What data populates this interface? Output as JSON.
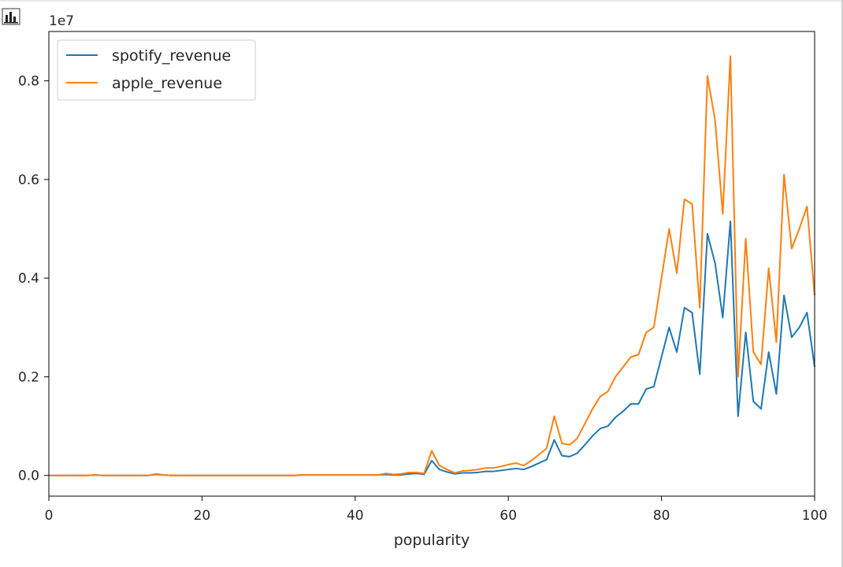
{
  "toolbar": {
    "icon": "bar-chart-icon"
  },
  "chart_data": {
    "type": "line",
    "title": "",
    "xlabel": "popularity",
    "ylabel": "",
    "y_offset_label": "1e7",
    "y_scale": 10000000,
    "xlim": [
      0,
      100
    ],
    "ylim": [
      -0.042,
      0.9
    ],
    "xticks": [
      0,
      20,
      40,
      60,
      80,
      100
    ],
    "yticks": [
      0.0,
      0.2,
      0.4,
      0.6,
      0.8
    ],
    "grid": false,
    "legend": "upper-left",
    "x": [
      0,
      1,
      2,
      3,
      4,
      5,
      6,
      7,
      8,
      9,
      10,
      11,
      12,
      13,
      14,
      15,
      16,
      17,
      18,
      19,
      20,
      21,
      22,
      23,
      24,
      25,
      26,
      27,
      28,
      29,
      30,
      31,
      32,
      33,
      34,
      35,
      36,
      37,
      38,
      39,
      40,
      41,
      42,
      43,
      44,
      45,
      46,
      47,
      48,
      49,
      50,
      51,
      52,
      53,
      54,
      55,
      56,
      57,
      58,
      59,
      60,
      61,
      62,
      63,
      64,
      65,
      66,
      67,
      68,
      69,
      70,
      71,
      72,
      73,
      74,
      75,
      76,
      77,
      78,
      79,
      80,
      81,
      82,
      83,
      84,
      85,
      86,
      87,
      88,
      89,
      90,
      91,
      92,
      93,
      94,
      95,
      96,
      97,
      98,
      99,
      100
    ],
    "series": [
      {
        "name": "spotify_revenue",
        "color": "#1f77b4",
        "values": [
          0.0,
          0.0,
          0.0,
          0.0,
          0.0,
          0.0,
          0.001,
          0.0,
          0.0,
          0.0,
          0.0,
          0.0,
          0.0,
          0.0,
          0.002,
          0.001,
          0.0,
          0.0,
          0.0,
          0.0,
          0.0,
          0.0,
          0.0,
          0.0,
          0.0,
          0.0,
          0.0,
          0.0,
          0.0,
          0.0,
          0.0,
          0.0,
          0.0,
          0.001,
          0.001,
          0.001,
          0.001,
          0.001,
          0.001,
          0.001,
          0.001,
          0.001,
          0.001,
          0.001,
          0.002,
          0.001,
          0.001,
          0.003,
          0.004,
          0.002,
          0.03,
          0.012,
          0.007,
          0.003,
          0.005,
          0.005,
          0.006,
          0.008,
          0.008,
          0.01,
          0.012,
          0.014,
          0.012,
          0.018,
          0.025,
          0.032,
          0.072,
          0.04,
          0.038,
          0.045,
          0.062,
          0.08,
          0.095,
          0.1,
          0.118,
          0.13,
          0.145,
          0.145,
          0.175,
          0.18,
          0.24,
          0.3,
          0.25,
          0.34,
          0.33,
          0.205,
          0.49,
          0.43,
          0.32,
          0.515,
          0.12,
          0.29,
          0.15,
          0.135,
          0.25,
          0.165,
          0.365,
          0.28,
          0.3,
          0.33,
          0.22
        ]
      },
      {
        "name": "apple_revenue",
        "color": "#ff7f0e",
        "values": [
          0.0,
          0.0,
          0.0,
          0.0,
          0.0,
          0.0,
          0.001,
          0.0,
          0.0,
          0.0,
          0.0,
          0.0,
          0.0,
          0.0,
          0.003,
          0.001,
          0.0,
          0.0,
          0.0,
          0.0,
          0.0,
          0.0,
          0.0,
          0.0,
          0.0,
          0.0,
          0.0,
          0.0,
          0.0,
          0.0,
          0.0,
          0.0,
          0.0,
          0.001,
          0.001,
          0.001,
          0.001,
          0.001,
          0.001,
          0.001,
          0.001,
          0.001,
          0.001,
          0.001,
          0.004,
          0.002,
          0.003,
          0.006,
          0.006,
          0.004,
          0.05,
          0.02,
          0.012,
          0.005,
          0.009,
          0.01,
          0.012,
          0.015,
          0.015,
          0.018,
          0.022,
          0.025,
          0.02,
          0.03,
          0.042,
          0.055,
          0.12,
          0.065,
          0.062,
          0.075,
          0.105,
          0.135,
          0.16,
          0.17,
          0.2,
          0.22,
          0.24,
          0.245,
          0.29,
          0.3,
          0.4,
          0.5,
          0.41,
          0.56,
          0.55,
          0.34,
          0.81,
          0.72,
          0.53,
          0.85,
          0.2,
          0.48,
          0.25,
          0.225,
          0.42,
          0.27,
          0.61,
          0.46,
          0.5,
          0.545,
          0.365
        ]
      }
    ]
  }
}
